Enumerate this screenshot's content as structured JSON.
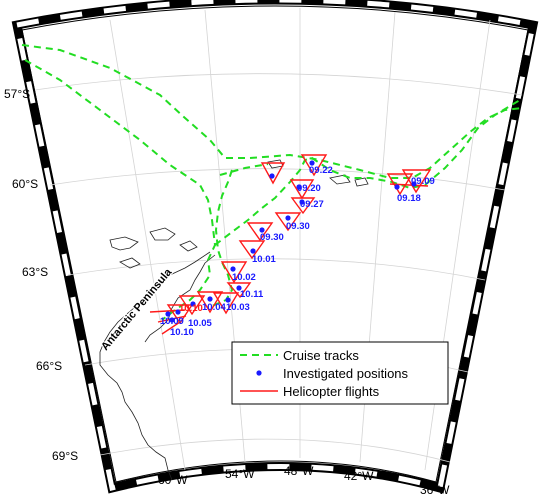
{
  "colors": {
    "cruise": "#22dd22",
    "station": "#1a1aff",
    "helicopter": "#ff1a1a",
    "grid": "#cfcfcf",
    "coast": "#222222"
  },
  "latitude_labels": [
    "57°S",
    "60°S",
    "63°S",
    "66°S",
    "69°S"
  ],
  "longitude_labels": [
    "60°W",
    "54°W",
    "48°W",
    "42°W",
    "36°W"
  ],
  "place_label": "Antarctic Peninsula",
  "station_dates": [
    "09.09",
    "09.18",
    "09.20",
    "09.22",
    "09.27",
    "09.30",
    "09.30",
    "10.01",
    "10.02",
    "10.11",
    "10.04",
    "10.03",
    "10.05",
    "10.09",
    "10.10",
    "10.10"
  ],
  "legend": {
    "cruise_label": "Cruise tracks",
    "station_label": "Investigated positions",
    "helicopter_label": "Helicopter flights"
  }
}
